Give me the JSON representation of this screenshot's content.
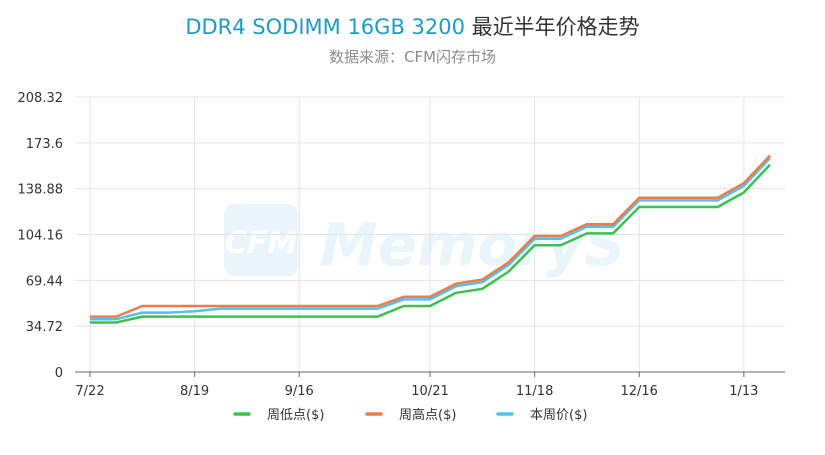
{
  "header": {
    "title_en": "DDR4 SODIMM 16GB 3200",
    "title_cn": "最近半年价格走势",
    "subtitle": "数据来源：CFM闪存市场"
  },
  "watermark": {
    "logo_text": "CFM",
    "brand": "MemoryS"
  },
  "colors": {
    "low": "#3dc051",
    "high": "#ec7c4b",
    "avg": "#4ec4e6",
    "title_accent": "#1f9bc4"
  },
  "chart_data": {
    "type": "line",
    "title": "DDR4 SODIMM 16GB 3200 最近半年价格走势",
    "subtitle": "数据来源：CFM闪存市场",
    "x_tick_labels": [
      "7/22",
      "8/19",
      "9/16",
      "10/21",
      "11/18",
      "12/16",
      "1/13"
    ],
    "y_tick_labels": [
      "0",
      "34.72",
      "69.44",
      "104.16",
      "138.88",
      "173.6",
      "208.32"
    ],
    "ylim": [
      0,
      208.32
    ],
    "grid": true,
    "legend_position": "bottom",
    "x": [
      "7/22",
      "7/29",
      "8/5",
      "8/12",
      "8/19",
      "8/26",
      "9/2",
      "9/9",
      "9/16",
      "9/23",
      "9/30",
      "10/7",
      "10/14",
      "10/21",
      "10/28",
      "11/4",
      "11/11",
      "11/18",
      "11/25",
      "12/2",
      "12/9",
      "12/16",
      "12/23",
      "12/30",
      "1/6",
      "1/13",
      "1/20"
    ],
    "series": [
      {
        "name": "周低点($)",
        "key": "low",
        "values": [
          37.5,
          37.5,
          42,
          42,
          42,
          42,
          42,
          42,
          42,
          42,
          42,
          42,
          50,
          50,
          60,
          63,
          76,
          96,
          96,
          105,
          105,
          125,
          125,
          125,
          125,
          136,
          157
        ]
      },
      {
        "name": "周高点($)",
        "key": "high",
        "values": [
          42,
          42,
          50,
          50,
          50,
          50,
          50,
          50,
          50,
          50,
          50,
          50,
          57,
          57,
          67,
          70,
          83,
          103,
          103,
          112,
          112,
          132,
          132,
          132,
          132,
          143,
          164
        ]
      },
      {
        "name": "本周价($)",
        "key": "avg",
        "values": [
          40,
          40,
          45,
          45,
          46,
          48,
          48,
          48,
          48,
          48,
          48,
          48,
          55,
          55,
          65,
          68,
          81,
          101,
          101,
          110,
          110,
          130,
          130,
          130,
          130,
          141,
          162
        ]
      }
    ]
  }
}
